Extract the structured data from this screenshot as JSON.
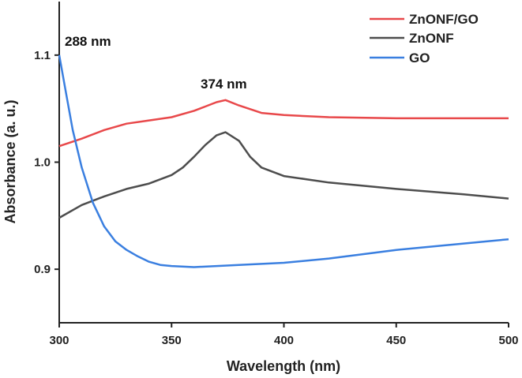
{
  "chart_data": {
    "type": "line",
    "title": "",
    "xlabel": "Wavelength (nm)",
    "ylabel": "Absorbance (a. u.)",
    "xlim": [
      300,
      500
    ],
    "ylim": [
      0.85,
      1.15
    ],
    "xticks": [
      300,
      350,
      400,
      450,
      500
    ],
    "yticks": [
      0.9,
      1.0,
      1.1
    ],
    "ytick_labels": [
      "0.9",
      "1.0",
      "1.1"
    ],
    "legend_position": "top-right",
    "grid": false,
    "series": [
      {
        "name": "ZnONF/GO",
        "color": "#e8484a",
        "x": [
          300,
          310,
          320,
          330,
          340,
          350,
          360,
          365,
          370,
          374,
          380,
          390,
          400,
          420,
          450,
          480,
          500
        ],
        "y": [
          1.015,
          1.022,
          1.03,
          1.036,
          1.039,
          1.042,
          1.048,
          1.052,
          1.056,
          1.058,
          1.053,
          1.046,
          1.044,
          1.042,
          1.041,
          1.041,
          1.041
        ]
      },
      {
        "name": "ZnONF",
        "color": "#4d4d4d",
        "x": [
          300,
          310,
          320,
          330,
          340,
          350,
          355,
          360,
          365,
          370,
          374,
          380,
          385,
          390,
          400,
          420,
          450,
          480,
          500
        ],
        "y": [
          0.948,
          0.96,
          0.968,
          0.975,
          0.98,
          0.988,
          0.995,
          1.005,
          1.016,
          1.025,
          1.028,
          1.02,
          1.005,
          0.995,
          0.987,
          0.981,
          0.975,
          0.97,
          0.966
        ]
      },
      {
        "name": "GO",
        "color": "#3a7fe0",
        "x": [
          300,
          303,
          306,
          310,
          315,
          320,
          325,
          330,
          335,
          340,
          345,
          350,
          360,
          380,
          400,
          420,
          450,
          480,
          500
        ],
        "y": [
          1.1,
          1.065,
          1.03,
          0.995,
          0.962,
          0.94,
          0.926,
          0.918,
          0.912,
          0.907,
          0.904,
          0.903,
          0.902,
          0.904,
          0.906,
          0.91,
          0.918,
          0.924,
          0.928
        ]
      }
    ],
    "annotations": [
      {
        "text": "288 nm"
      },
      {
        "text": "374 nm"
      }
    ]
  }
}
